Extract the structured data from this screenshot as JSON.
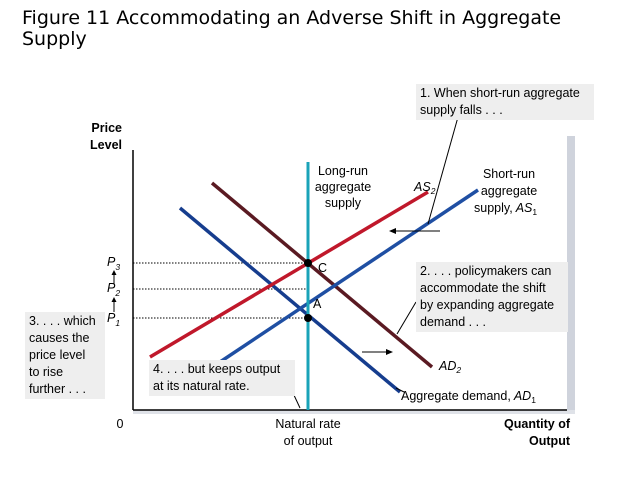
{
  "title": "Figure 11 Accommodating an Adverse Shift in Aggregate Supply",
  "chart_data": {
    "type": "line",
    "ylabel": [
      "Price",
      "Level"
    ],
    "xlabel": [
      "Quantity of",
      "Output"
    ],
    "origin_label": "0",
    "natural_rate_label": [
      "Natural rate",
      "of output"
    ],
    "lras_label": [
      "Long-run",
      "aggregate",
      "supply"
    ],
    "sras_label": [
      "Short-run",
      "aggregate",
      "supply,"
    ],
    "as1_base": "AS",
    "as1_sub": "1",
    "as2_base": "AS",
    "as2_sub": "2",
    "ad1_label": "Aggregate demand,",
    "ad1_base": "AD",
    "ad1_sub": "1",
    "ad2_base": "AD",
    "ad2_sub": "2",
    "points": [
      {
        "label": "A"
      },
      {
        "label": "C"
      }
    ],
    "price_levels": [
      {
        "base": "P",
        "sub": "1"
      },
      {
        "base": "P",
        "sub": "2"
      },
      {
        "base": "P",
        "sub": "3"
      }
    ],
    "colors": {
      "lras": "#1aa3b8",
      "as1": "#1f4fa3",
      "as2": "#c0182b",
      "ad1": "#163d8e",
      "ad2": "#5a1a22",
      "annotation_bg": "#eeeeee",
      "frame_shadow": "#cfd3dc"
    }
  },
  "annotations": {
    "a1": [
      "1. When short-run aggregate",
      "supply falls . . ."
    ],
    "a2": [
      "2. . . . policymakers can",
      "accommodate the shift",
      "by expanding aggregate",
      "demand . . ."
    ],
    "a3": [
      "3. . . . which",
      "causes the",
      "price level",
      "to rise",
      "further . . ."
    ],
    "a4": [
      "4. . . . but keeps output",
      "at its natural rate."
    ]
  }
}
